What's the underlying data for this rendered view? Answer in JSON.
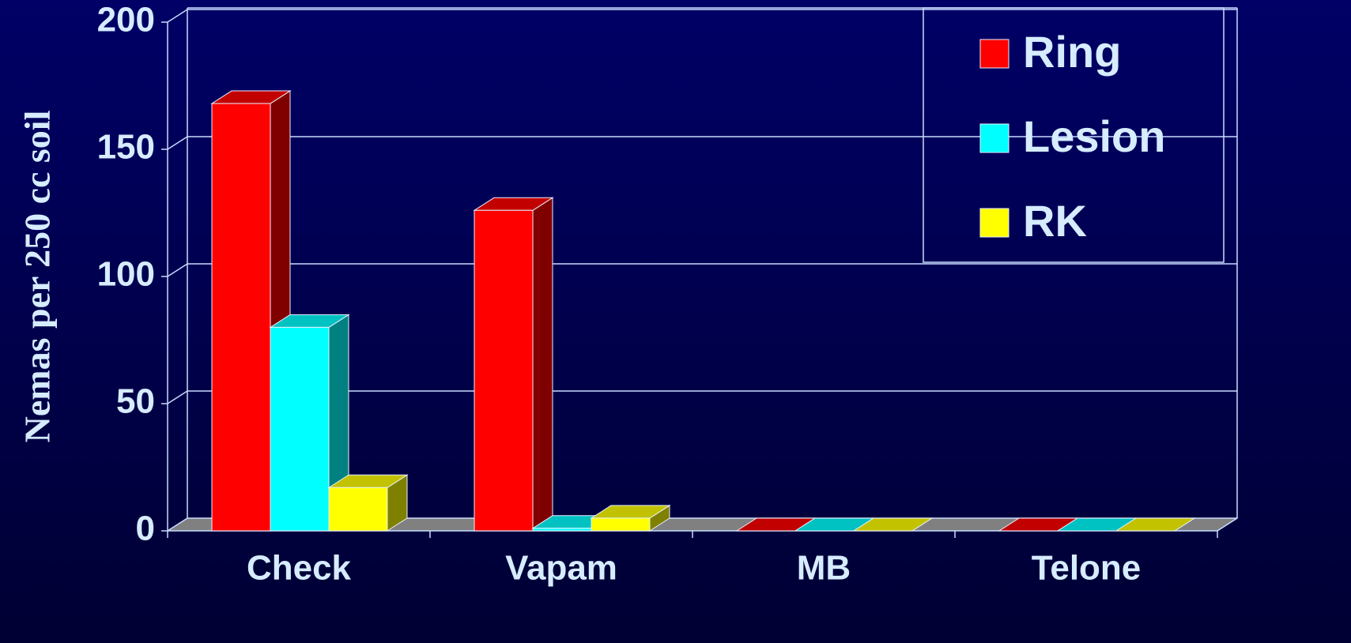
{
  "chart_data": {
    "type": "bar3d",
    "y_label": "Nemas per 250 cc soil",
    "categories": [
      "Check",
      "Vapam",
      "MB",
      "Telone"
    ],
    "series": [
      {
        "name": "Ring",
        "color": "#ff0000",
        "values": [
          168,
          126,
          0,
          0
        ]
      },
      {
        "name": "Lesion",
        "color": "#00ffff",
        "values": [
          80,
          1,
          0,
          0
        ]
      },
      {
        "name": "RK",
        "color": "#ffff00",
        "values": [
          17,
          5,
          0,
          0
        ]
      }
    ],
    "ylim": [
      0,
      200
    ],
    "yticks": [
      0,
      50,
      100,
      150,
      200
    ],
    "grid": true,
    "legend": "upper right"
  }
}
